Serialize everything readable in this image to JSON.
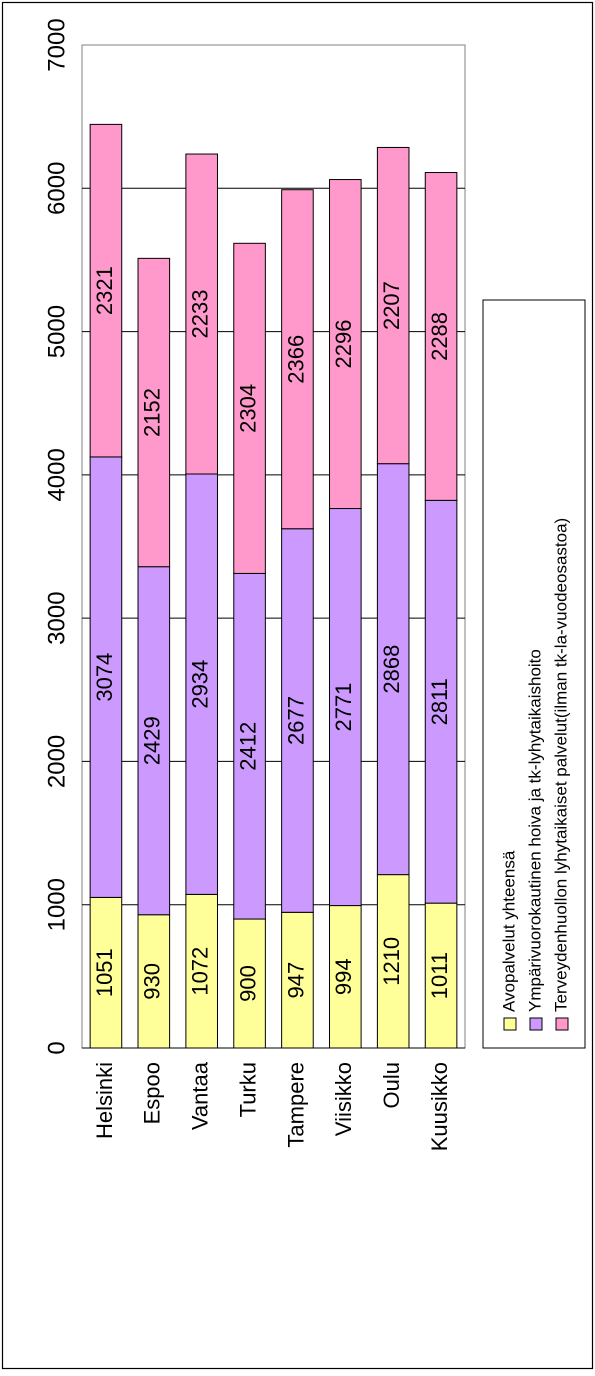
{
  "chart_data": {
    "type": "bar",
    "orientation": "horizontal-stacked",
    "categories": [
      "Helsinki",
      "Espoo",
      "Vantaa",
      "Turku",
      "Tampere",
      "Viisikko",
      "Oulu",
      "Kuusikko"
    ],
    "series": [
      {
        "name": "Avopalvelut yhteensä",
        "color": "#FFFF99",
        "values": [
          1051,
          930,
          1072,
          900,
          947,
          994,
          1210,
          1011
        ]
      },
      {
        "name": "Ympärivuorokautinen hoiva ja tk-lyhytaikaishoito",
        "color": "#CC99FF",
        "values": [
          3074,
          2429,
          2934,
          2412,
          2677,
          2771,
          2868,
          2811
        ]
      },
      {
        "name": "Terveydenhuollon lyhytaikaiset palvelut(ilman tk-la-vuodeosastoa)",
        "color": "#FF99CC",
        "values": [
          2321,
          2152,
          2233,
          2304,
          2366,
          2296,
          2207,
          2288
        ]
      }
    ],
    "value_ticks": [
      "0",
      "1000",
      "2000",
      "3000",
      "4000",
      "5000",
      "6000",
      "7000"
    ],
    "xlim": [
      0,
      7000
    ],
    "grid": true,
    "legend_position": "right",
    "title": "",
    "xlabel": "",
    "ylabel": ""
  }
}
